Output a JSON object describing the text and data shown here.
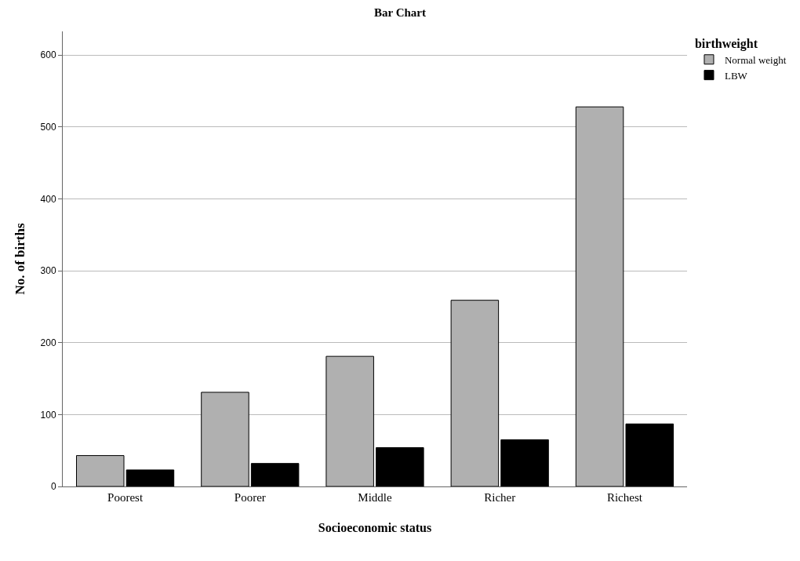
{
  "chart_data": {
    "type": "bar",
    "title": "Bar Chart",
    "xlabel": "Socioeconomic status",
    "ylabel": "No. of births",
    "legend_title": "birthweight",
    "categories": [
      "Poorest",
      "Poorer",
      "Middle",
      "Richer",
      "Richest"
    ],
    "series": [
      {
        "name": "Normal weight",
        "color": "#b0b0b0",
        "values": [
          43,
          131,
          181,
          259,
          528
        ]
      },
      {
        "name": "LBW",
        "color": "#000000",
        "values": [
          23,
          32,
          54,
          65,
          87
        ]
      }
    ],
    "ylim": [
      0,
      633
    ],
    "yticks": [
      0,
      100,
      200,
      300,
      400,
      500,
      600
    ],
    "grid": "y",
    "legend": "top right"
  }
}
